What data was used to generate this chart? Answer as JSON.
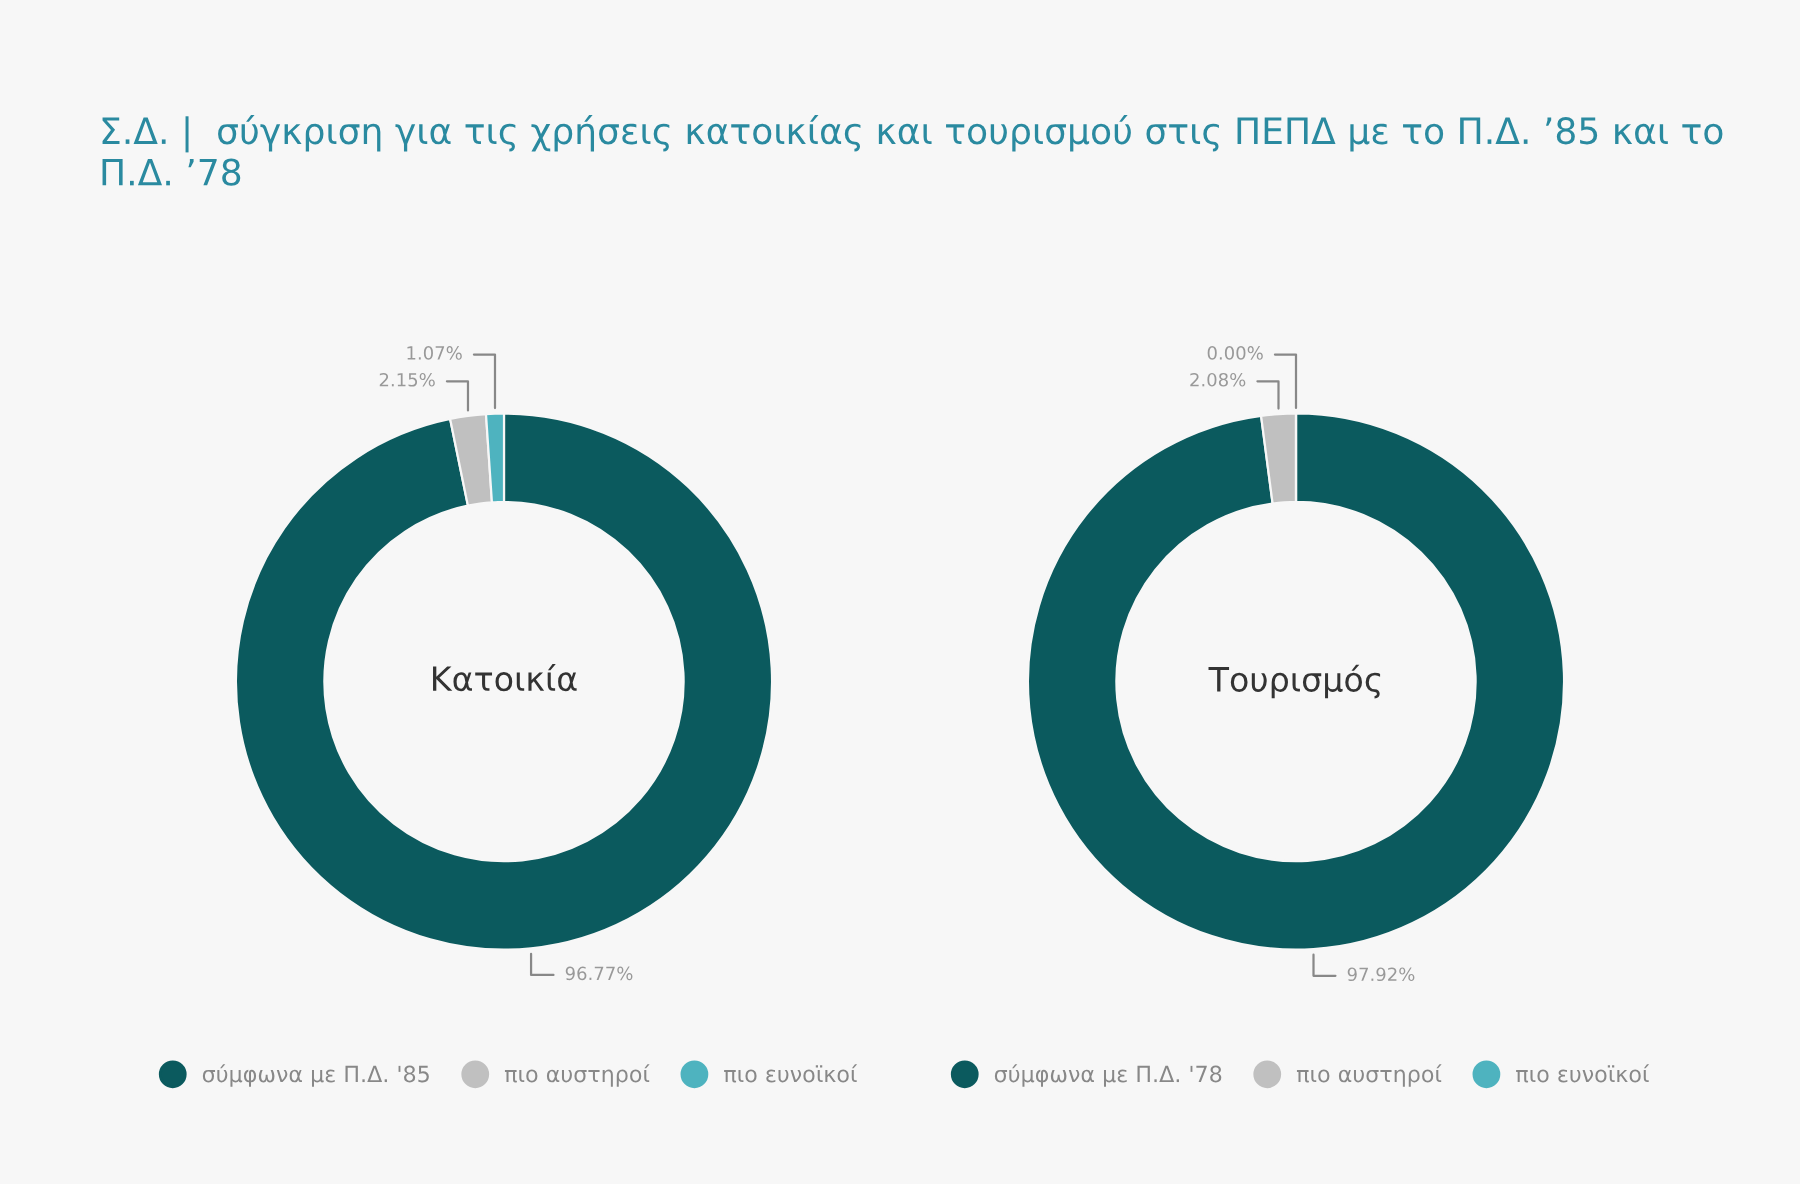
{
  "chart_data": [
    {
      "type": "donut",
      "title": "Σ.Δ. |  σύγκριση για τις χρήσεις κατοικίας και τουρισμού στις ΠΕΠΔ με το Π.Δ. ’85 και το Π.Δ. ’78",
      "annotations": [
        "Κατοικία"
      ],
      "categories": [
        "σύμφωνα με Π.Δ. '85",
        "πιο αυστηροί",
        "πιο ευνοϊκοί"
      ],
      "values": [
        96.77,
        2.15,
        1.07
      ],
      "value_labels": [
        "96.77%",
        "2.15%",
        "1.07%"
      ],
      "colors": [
        "#0b5a5e",
        "#c0c0c0",
        "#4eb3bf"
      ],
      "legend": "bottom"
    },
    {
      "type": "donut",
      "annotations": [
        "Τουρισμός"
      ],
      "categories": [
        "σύμφωνα με Π.Δ. '78",
        "πιο αυστηροί",
        "πιο ευνοϊκοί"
      ],
      "values": [
        97.92,
        2.08,
        0.0
      ],
      "value_labels": [
        "97.92%",
        "2.08%",
        "0.00%"
      ],
      "colors": [
        "#0b5a5e",
        "#c0c0c0",
        "#4eb3bf"
      ],
      "legend": "bottom"
    }
  ]
}
